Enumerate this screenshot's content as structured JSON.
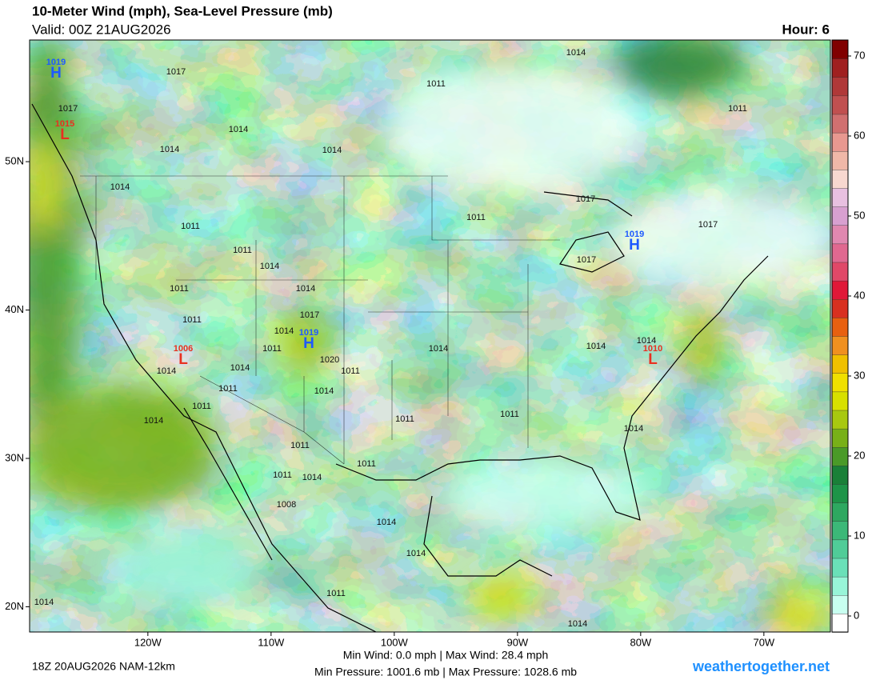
{
  "header": {
    "title": "10-Meter Wind (mph), Sea-Level Pressure (mb)",
    "valid": "Valid: 00Z 21AUG2026",
    "hour": "Hour: 6"
  },
  "map": {
    "lonlim": [
      -129.6,
      -64.6
    ],
    "latlim": [
      18.3,
      58.2
    ],
    "lonticks": [
      {
        "value": -120,
        "label": "120W"
      },
      {
        "value": -110,
        "label": "110W"
      },
      {
        "value": -100,
        "label": "100W"
      },
      {
        "value": -90,
        "label": "90W"
      },
      {
        "value": -80,
        "label": "80W"
      },
      {
        "value": -70,
        "label": "70W"
      }
    ],
    "latticks": [
      {
        "value": 20,
        "label": "20N"
      },
      {
        "value": 30,
        "label": "30N"
      },
      {
        "value": 40,
        "label": "40N"
      },
      {
        "value": 50,
        "label": "50N"
      }
    ],
    "pressure_labels": [
      1014,
      1017,
      1011,
      1017,
      1014,
      1014,
      1014,
      1011,
      1014,
      1017,
      1011,
      1011,
      1017,
      1011,
      1017,
      1014,
      1014,
      1011,
      1017,
      1011,
      1014,
      1014,
      1014,
      1014,
      1011,
      1020,
      1011,
      1014,
      1014,
      1011,
      1014,
      1011,
      1014,
      1011,
      1011,
      1014,
      1011,
      1011,
      1011,
      1014,
      1008,
      1014,
      1014,
      1011,
      1014,
      1014
    ],
    "centers": [
      {
        "letter": "H",
        "value": 1019
      },
      {
        "letter": "L",
        "value": 1015
      },
      {
        "letter": "L",
        "value": 1006
      },
      {
        "letter": "H",
        "value": 1019
      },
      {
        "letter": "H",
        "value": 1019
      },
      {
        "letter": "L",
        "value": 1010
      }
    ]
  },
  "colorbar": {
    "lim": [
      -2,
      72
    ],
    "ticks": [
      0,
      10,
      20,
      30,
      40,
      50,
      60,
      70
    ],
    "colors": [
      "#ffffff",
      "#c8fff0",
      "#98f5d8",
      "#6ae0b8",
      "#50cc98",
      "#3cb878",
      "#2ea860",
      "#1e9448",
      "#1a8038",
      "#4a9a28",
      "#78b018",
      "#a8c810",
      "#d8e000",
      "#f0e000",
      "#f0c000",
      "#f09020",
      "#e86010",
      "#d83020",
      "#e01838",
      "#e04868",
      "#e06890",
      "#e088b0",
      "#d8a0d0",
      "#e8c0e0",
      "#f8d8d0",
      "#f0b8a8",
      "#e89890",
      "#d07070",
      "#c05050",
      "#b03838",
      "#a02020",
      "#800000"
    ]
  },
  "footer": {
    "run": "18Z 20AUG2026 NAM-12km",
    "wind_stats": "Min Wind:   0.0 mph | Max Wind:  28.4 mph",
    "pressure_stats": "Min Pressure: 1001.6 mb | Max Pressure: 1028.6 mb",
    "brand": "weathertogether.net"
  }
}
